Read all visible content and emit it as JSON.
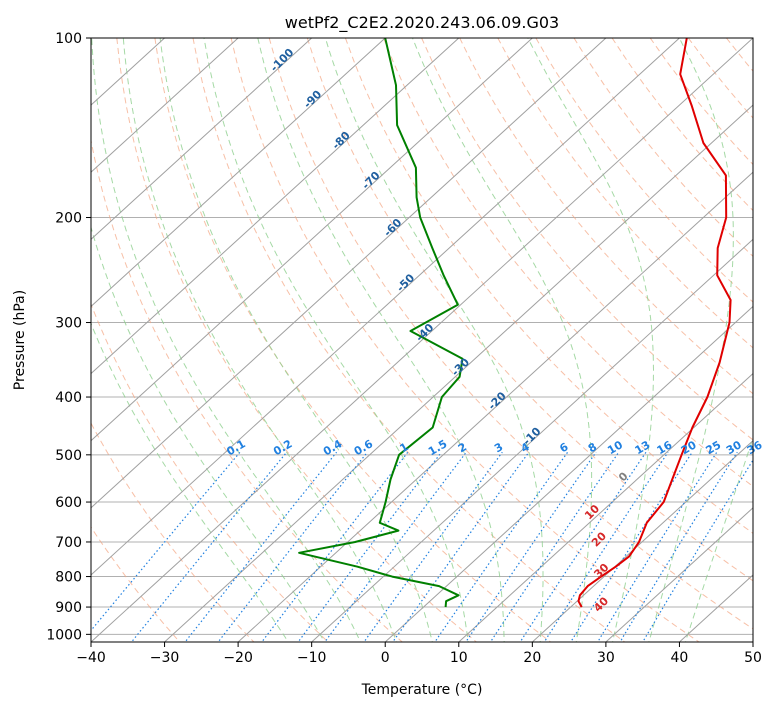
{
  "chart_data": {
    "type": "line",
    "title": "wetPf2_C2E2.2020.243.06.09.G03",
    "xlabel": "Temperature (°C)",
    "ylabel": "Pressure (hPa)",
    "xlim": [
      -40,
      50
    ],
    "ylim": [
      1030,
      100
    ],
    "y_scale": "log",
    "grid": true,
    "x_ticks": [
      "−40",
      "−30",
      "−20",
      "−10",
      "0",
      "10",
      "20",
      "30",
      "40",
      "50"
    ],
    "y_ticks": [
      "100",
      "200",
      "300",
      "400",
      "500",
      "600",
      "700",
      "800",
      "900",
      "1000"
    ],
    "colors": {
      "temperature": "#e00000",
      "dewpoint": "#008000",
      "isotherm": "#a0a0a0",
      "dry_adiabat": "#f4a582",
      "moist_adiabat": "#8fcf8f",
      "mixing_ratio": "#2080e0",
      "isotherm_label": "#1f5f9f",
      "moist_label": "#d62728"
    },
    "series": [
      {
        "key": "temperature",
        "points": [
          [
            21.5,
            900
          ],
          [
            20.2,
            880
          ],
          [
            19.5,
            860
          ],
          [
            19.2,
            830
          ],
          [
            19.6,
            800
          ],
          [
            20.1,
            770
          ],
          [
            20.4,
            740
          ],
          [
            20.0,
            720
          ],
          [
            19.6,
            700
          ],
          [
            17.8,
            650
          ],
          [
            17.0,
            600
          ],
          [
            14.8,
            550
          ],
          [
            12.4,
            500
          ],
          [
            9.8,
            450
          ],
          [
            7.3,
            400
          ],
          [
            3.8,
            350
          ],
          [
            -0.8,
            300
          ],
          [
            -4.0,
            275
          ],
          [
            -9.5,
            250
          ],
          [
            -13.5,
            225
          ],
          [
            -16.9,
            200
          ],
          [
            -23.2,
            170
          ],
          [
            -31.1,
            150
          ],
          [
            -38.2,
            130
          ],
          [
            -44.5,
            115
          ],
          [
            -49.0,
            100
          ]
        ]
      },
      {
        "key": "dewpoint",
        "points": [
          [
            3.0,
            900
          ],
          [
            2.2,
            880
          ],
          [
            3.0,
            860
          ],
          [
            -1.0,
            830
          ],
          [
            -8.8,
            800
          ],
          [
            -15.0,
            770
          ],
          [
            -25.0,
            730
          ],
          [
            -19.0,
            700
          ],
          [
            -14.8,
            670
          ],
          [
            -18.5,
            650
          ],
          [
            -20.8,
            600
          ],
          [
            -23.5,
            550
          ],
          [
            -26.0,
            500
          ],
          [
            -25.5,
            450
          ],
          [
            -28.8,
            400
          ],
          [
            -29.4,
            370
          ],
          [
            -31.7,
            345
          ],
          [
            -42.9,
            310
          ],
          [
            -40.4,
            280
          ],
          [
            -46.7,
            250
          ],
          [
            -52.3,
            225
          ],
          [
            -58.5,
            200
          ],
          [
            -62.0,
            185
          ],
          [
            -66.5,
            165
          ],
          [
            -75.4,
            140
          ],
          [
            -81.5,
            120
          ],
          [
            -90.0,
            100
          ]
        ]
      }
    ],
    "isotherm_labels": [
      "-100",
      "-90",
      "-80",
      "-70",
      "-60",
      "-50",
      "-40",
      "-30",
      "-20",
      "-10"
    ],
    "mixing_ratio_labels": [
      "0.1",
      "0.2",
      "0.4",
      "0.6",
      "1",
      "1.5",
      "2",
      "3",
      "4",
      "6",
      "8",
      "10",
      "13",
      "16",
      "20",
      "25",
      "30",
      "36"
    ],
    "moist_adiabat_labels": [
      "0",
      "10",
      "20",
      "30",
      "40"
    ]
  }
}
